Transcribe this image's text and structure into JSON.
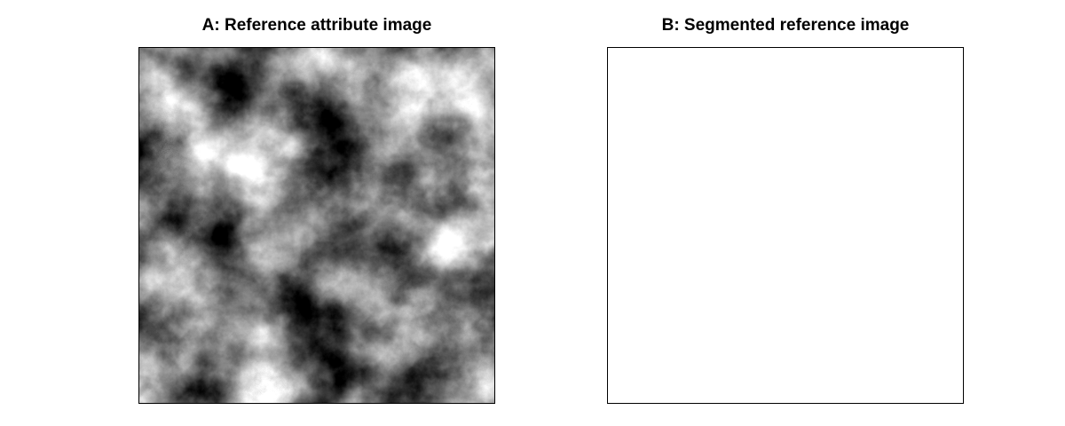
{
  "figure": {
    "panel_a": {
      "title": "A: Reference attribute image"
    },
    "panel_b": {
      "title": "B: Segmented reference image"
    }
  },
  "colors": {
    "background": "#ffffff",
    "frame": "#000000",
    "image_dark": "#000000",
    "image_light": "#ffffff"
  }
}
